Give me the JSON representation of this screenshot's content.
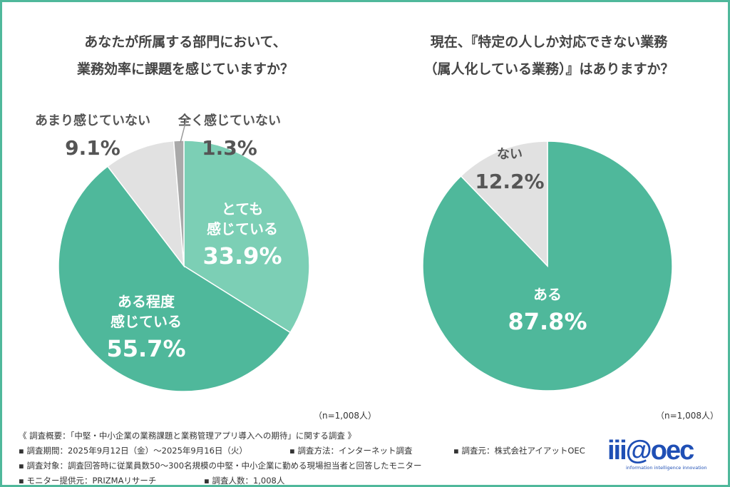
{
  "chart_data": [
    {
      "type": "pie",
      "title": [
        "あなたが所属する部門において、",
        "業務効率に課題を感じていますか？"
      ],
      "slices": [
        {
          "label": "とても\n感じている",
          "value": 33.9,
          "display": "33.9%",
          "color": "#7ccfb5"
        },
        {
          "label": "ある程度\n感じている",
          "value": 55.7,
          "display": "55.7%",
          "color": "#4fb89b"
        },
        {
          "label": "あまり感じていない",
          "value": 9.1,
          "display": "9.1%",
          "color": "#e1e1e1"
        },
        {
          "label": "全く感じていない",
          "value": 1.3,
          "display": "1.3%",
          "color": "#a9a9a9"
        }
      ],
      "note": "（n=1,008人）"
    },
    {
      "type": "pie",
      "title": [
        "現在、『特定の人しか対応できない業務",
        "（属人化している業務）』はありますか？"
      ],
      "slices": [
        {
          "label": "ある",
          "value": 87.8,
          "display": "87.8%",
          "color": "#4fb89b"
        },
        {
          "label": "ない",
          "value": 12.2,
          "display": "12.2%",
          "color": "#e1e1e1"
        }
      ],
      "note": "（n=1,008人）"
    }
  ],
  "footer": {
    "summary": "《 調査概要：「中堅・中小企業の業務課題と業務管理アプリ導入への期待」に関する調査 》",
    "period": "▪ 調査期間：2025年9月12日（金）～2025年9月16日（火）",
    "method": "▪ 調査方法：インターネット調査",
    "source": "▪ 調査元：株式会社アイアットOEC",
    "target": "▪ 調査対象：調査回答時に従業員数50～300名規模の中堅・中小企業に勤める現場担当者と回答したモニター",
    "provider": "▪ モニター提供元：PRIZMAリサーチ",
    "count": "▪ 調査人数：1,008人"
  },
  "logo": {
    "text": "iii@oec",
    "tagline": "information intelligence innovation"
  }
}
